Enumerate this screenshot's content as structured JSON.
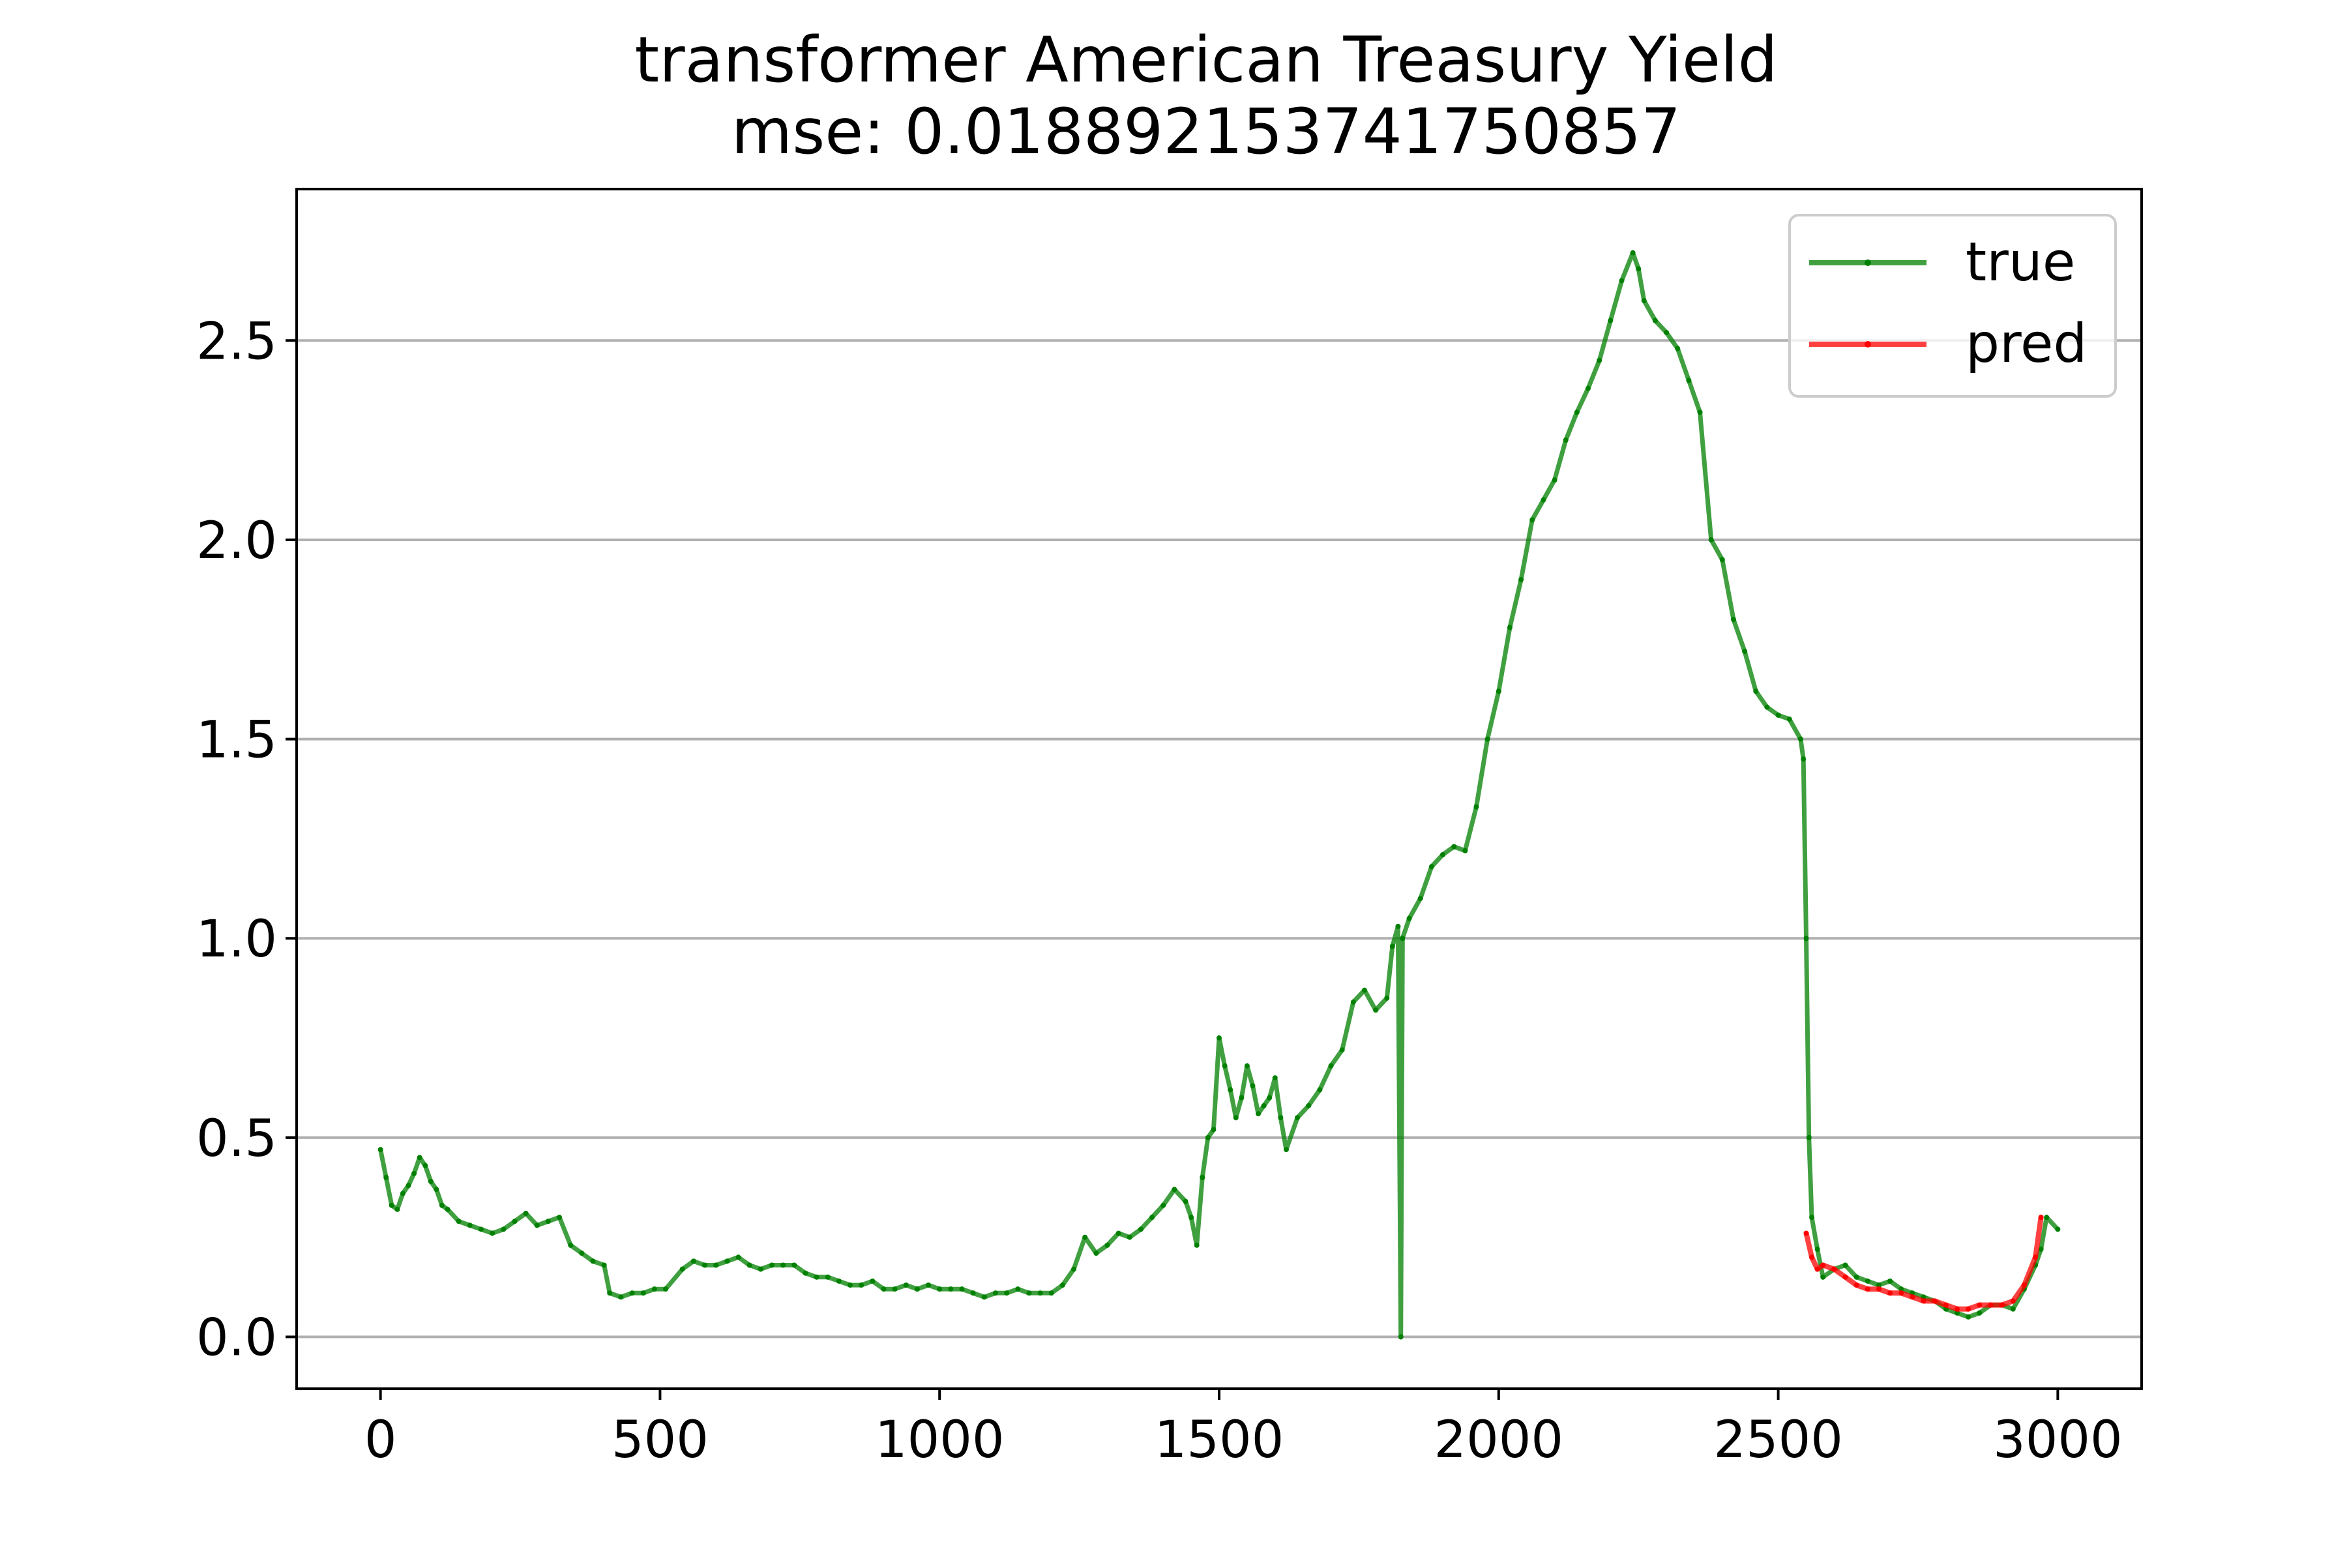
{
  "chart_data": {
    "type": "line",
    "title": "transformer American Treasury Yield",
    "subtitle": "mse: 0.018892153741750857",
    "xlabel": "",
    "ylabel": "",
    "xlim": [
      -150,
      3150
    ],
    "ylim": [
      -0.13,
      2.88
    ],
    "xticks": [
      0,
      500,
      1000,
      1500,
      2000,
      2500,
      3000
    ],
    "xtick_labels": [
      "0",
      "500",
      "1000",
      "1500",
      "2000",
      "2500",
      "3000"
    ],
    "yticks": [
      0.0,
      0.5,
      1.0,
      1.5,
      2.0,
      2.5
    ],
    "ytick_labels": [
      "0.0",
      "0.5",
      "1.0",
      "1.5",
      "2.0",
      "2.5"
    ],
    "grid": "horizontal",
    "legend_position": "top-right",
    "series": [
      {
        "name": "true",
        "color": "#008000",
        "points": [
          [
            0,
            0.47
          ],
          [
            10,
            0.4
          ],
          [
            20,
            0.33
          ],
          [
            30,
            0.32
          ],
          [
            40,
            0.36
          ],
          [
            50,
            0.38
          ],
          [
            60,
            0.41
          ],
          [
            70,
            0.45
          ],
          [
            80,
            0.43
          ],
          [
            90,
            0.39
          ],
          [
            100,
            0.37
          ],
          [
            110,
            0.33
          ],
          [
            120,
            0.32
          ],
          [
            140,
            0.29
          ],
          [
            160,
            0.28
          ],
          [
            180,
            0.27
          ],
          [
            200,
            0.26
          ],
          [
            220,
            0.27
          ],
          [
            240,
            0.29
          ],
          [
            260,
            0.31
          ],
          [
            280,
            0.28
          ],
          [
            300,
            0.29
          ],
          [
            320,
            0.3
          ],
          [
            340,
            0.23
          ],
          [
            360,
            0.21
          ],
          [
            380,
            0.19
          ],
          [
            400,
            0.18
          ],
          [
            410,
            0.11
          ],
          [
            430,
            0.1
          ],
          [
            450,
            0.11
          ],
          [
            470,
            0.11
          ],
          [
            490,
            0.12
          ],
          [
            510,
            0.12
          ],
          [
            540,
            0.17
          ],
          [
            560,
            0.19
          ],
          [
            580,
            0.18
          ],
          [
            600,
            0.18
          ],
          [
            620,
            0.19
          ],
          [
            640,
            0.2
          ],
          [
            660,
            0.18
          ],
          [
            680,
            0.17
          ],
          [
            700,
            0.18
          ],
          [
            720,
            0.18
          ],
          [
            740,
            0.18
          ],
          [
            760,
            0.16
          ],
          [
            780,
            0.15
          ],
          [
            800,
            0.15
          ],
          [
            820,
            0.14
          ],
          [
            840,
            0.13
          ],
          [
            860,
            0.13
          ],
          [
            880,
            0.14
          ],
          [
            900,
            0.12
          ],
          [
            920,
            0.12
          ],
          [
            940,
            0.13
          ],
          [
            960,
            0.12
          ],
          [
            980,
            0.13
          ],
          [
            1000,
            0.12
          ],
          [
            1020,
            0.12
          ],
          [
            1040,
            0.12
          ],
          [
            1060,
            0.11
          ],
          [
            1080,
            0.1
          ],
          [
            1100,
            0.11
          ],
          [
            1120,
            0.11
          ],
          [
            1140,
            0.12
          ],
          [
            1160,
            0.11
          ],
          [
            1180,
            0.11
          ],
          [
            1200,
            0.11
          ],
          [
            1220,
            0.13
          ],
          [
            1240,
            0.17
          ],
          [
            1260,
            0.25
          ],
          [
            1280,
            0.21
          ],
          [
            1300,
            0.23
          ],
          [
            1320,
            0.26
          ],
          [
            1340,
            0.25
          ],
          [
            1360,
            0.27
          ],
          [
            1380,
            0.3
          ],
          [
            1400,
            0.33
          ],
          [
            1420,
            0.37
          ],
          [
            1440,
            0.34
          ],
          [
            1450,
            0.3
          ],
          [
            1460,
            0.23
          ],
          [
            1470,
            0.4
          ],
          [
            1480,
            0.5
          ],
          [
            1490,
            0.52
          ],
          [
            1500,
            0.75
          ],
          [
            1510,
            0.68
          ],
          [
            1520,
            0.62
          ],
          [
            1530,
            0.55
          ],
          [
            1540,
            0.6
          ],
          [
            1550,
            0.68
          ],
          [
            1560,
            0.63
          ],
          [
            1570,
            0.56
          ],
          [
            1580,
            0.58
          ],
          [
            1590,
            0.6
          ],
          [
            1600,
            0.65
          ],
          [
            1610,
            0.55
          ],
          [
            1620,
            0.47
          ],
          [
            1640,
            0.55
          ],
          [
            1660,
            0.58
          ],
          [
            1680,
            0.62
          ],
          [
            1700,
            0.68
          ],
          [
            1720,
            0.72
          ],
          [
            1740,
            0.84
          ],
          [
            1760,
            0.87
          ],
          [
            1780,
            0.82
          ],
          [
            1800,
            0.85
          ],
          [
            1810,
            0.98
          ],
          [
            1820,
            1.03
          ],
          [
            1825,
            0.0
          ],
          [
            1828,
            1.0
          ],
          [
            1840,
            1.05
          ],
          [
            1860,
            1.1
          ],
          [
            1880,
            1.18
          ],
          [
            1900,
            1.21
          ],
          [
            1920,
            1.23
          ],
          [
            1940,
            1.22
          ],
          [
            1960,
            1.33
          ],
          [
            1980,
            1.5
          ],
          [
            2000,
            1.62
          ],
          [
            2020,
            1.78
          ],
          [
            2040,
            1.9
          ],
          [
            2060,
            2.05
          ],
          [
            2080,
            2.1
          ],
          [
            2100,
            2.15
          ],
          [
            2120,
            2.25
          ],
          [
            2140,
            2.32
          ],
          [
            2160,
            2.38
          ],
          [
            2180,
            2.45
          ],
          [
            2200,
            2.55
          ],
          [
            2220,
            2.65
          ],
          [
            2240,
            2.72
          ],
          [
            2250,
            2.68
          ],
          [
            2260,
            2.6
          ],
          [
            2280,
            2.55
          ],
          [
            2300,
            2.52
          ],
          [
            2320,
            2.48
          ],
          [
            2340,
            2.4
          ],
          [
            2360,
            2.32
          ],
          [
            2380,
            2.0
          ],
          [
            2400,
            1.95
          ],
          [
            2420,
            1.8
          ],
          [
            2440,
            1.72
          ],
          [
            2460,
            1.62
          ],
          [
            2480,
            1.58
          ],
          [
            2500,
            1.56
          ],
          [
            2520,
            1.55
          ],
          [
            2540,
            1.5
          ],
          [
            2545,
            1.45
          ],
          [
            2550,
            1.0
          ],
          [
            2555,
            0.5
          ],
          [
            2560,
            0.3
          ],
          [
            2570,
            0.22
          ],
          [
            2580,
            0.15
          ],
          [
            2600,
            0.17
          ],
          [
            2620,
            0.18
          ],
          [
            2640,
            0.15
          ],
          [
            2660,
            0.14
          ],
          [
            2680,
            0.13
          ],
          [
            2700,
            0.14
          ],
          [
            2720,
            0.12
          ],
          [
            2740,
            0.11
          ],
          [
            2760,
            0.1
          ],
          [
            2780,
            0.09
          ],
          [
            2800,
            0.07
          ],
          [
            2820,
            0.06
          ],
          [
            2840,
            0.05
          ],
          [
            2860,
            0.06
          ],
          [
            2880,
            0.08
          ],
          [
            2900,
            0.08
          ],
          [
            2920,
            0.07
          ],
          [
            2940,
            0.12
          ],
          [
            2960,
            0.18
          ],
          [
            2970,
            0.22
          ],
          [
            2980,
            0.3
          ],
          [
            3000,
            0.27
          ]
        ]
      },
      {
        "name": "pred",
        "color": "#ff0000",
        "points": [
          [
            2550,
            0.26
          ],
          [
            2560,
            0.2
          ],
          [
            2570,
            0.17
          ],
          [
            2580,
            0.18
          ],
          [
            2600,
            0.17
          ],
          [
            2620,
            0.15
          ],
          [
            2640,
            0.13
          ],
          [
            2660,
            0.12
          ],
          [
            2680,
            0.12
          ],
          [
            2700,
            0.11
          ],
          [
            2720,
            0.11
          ],
          [
            2740,
            0.1
          ],
          [
            2760,
            0.09
          ],
          [
            2780,
            0.09
          ],
          [
            2800,
            0.08
          ],
          [
            2820,
            0.07
          ],
          [
            2840,
            0.07
          ],
          [
            2860,
            0.08
          ],
          [
            2880,
            0.08
          ],
          [
            2900,
            0.08
          ],
          [
            2920,
            0.09
          ],
          [
            2940,
            0.13
          ],
          [
            2960,
            0.2
          ],
          [
            2970,
            0.3
          ]
        ]
      }
    ]
  }
}
